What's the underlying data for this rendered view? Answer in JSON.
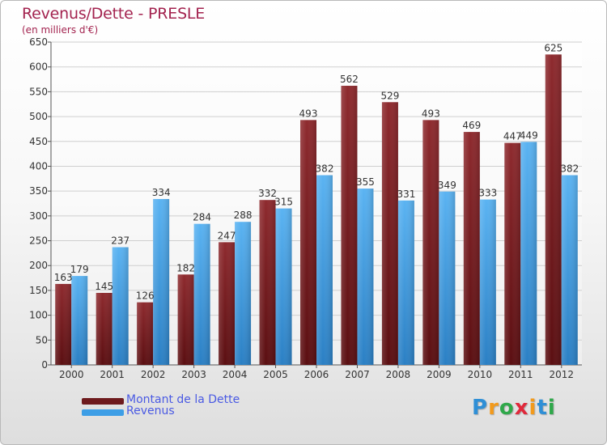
{
  "chart_data": {
    "type": "bar",
    "title": "Revenus/Dette - PRESLE",
    "subtitle": "(en milliers d'€)",
    "categories": [
      "2000",
      "2001",
      "2002",
      "2003",
      "2004",
      "2005",
      "2006",
      "2007",
      "2008",
      "2009",
      "2010",
      "2011",
      "2012"
    ],
    "series": [
      {
        "name": "Montant de la Dette",
        "color": "#7a1f22",
        "values": [
          163,
          145,
          126,
          182,
          247,
          332,
          493,
          562,
          529,
          493,
          469,
          447,
          625
        ]
      },
      {
        "name": "Revenus",
        "color": "#3d9ee6",
        "values": [
          179,
          237,
          334,
          284,
          288,
          315,
          382,
          355,
          331,
          349,
          333,
          449,
          382
        ]
      }
    ],
    "ylim": [
      0,
      650
    ],
    "yticks": [
      0,
      50,
      100,
      150,
      200,
      250,
      300,
      350,
      400,
      450,
      500,
      550,
      600,
      650
    ],
    "grid": true,
    "legend": "bottom-left"
  },
  "logo": {
    "letters": [
      "P",
      "r",
      "o",
      "x",
      "i",
      "t",
      "i"
    ],
    "colors": [
      "#2f8fd6",
      "#f29a1c",
      "#2fa84a",
      "#e0293b",
      "#f29a1c",
      "#2f8fd6",
      "#2fa84a"
    ]
  }
}
